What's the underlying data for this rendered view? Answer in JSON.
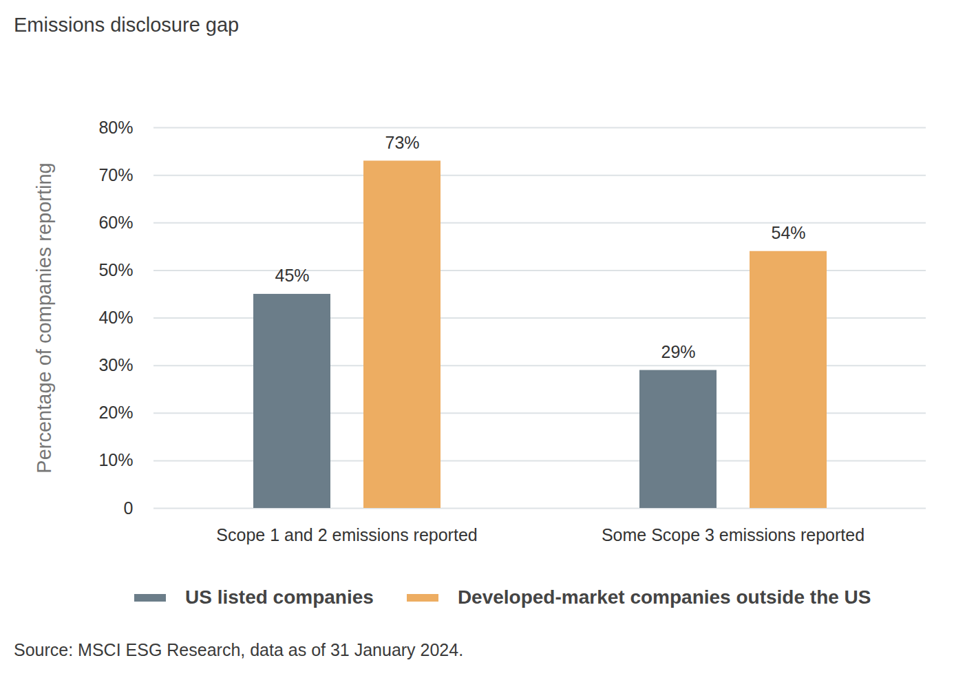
{
  "chart_data": {
    "type": "bar",
    "title": "Emissions disclosure gap",
    "y_label": "Percentage of companies reporting",
    "source": "Source: MSCI ESG Research, data as of 31 January 2024.",
    "categories": [
      "Scope 1 and 2 emissions reported",
      "Some Scope 3 emissions reported"
    ],
    "series": [
      {
        "name": "US listed companies",
        "color": "#6b7d89",
        "values": [
          45,
          29
        ],
        "value_labels": [
          "45%",
          "29%"
        ]
      },
      {
        "name": "Developed-market companies outside the US",
        "color": "#edad62",
        "values": [
          73,
          54
        ],
        "value_labels": [
          "73%",
          "54%"
        ]
      }
    ],
    "ylim": [
      0,
      80
    ],
    "yticks": [
      0,
      {
        "value": 10,
        "label": "10%"
      },
      {
        "value": 20,
        "label": "20%"
      },
      {
        "value": 30,
        "label": "30%"
      },
      {
        "value": 40,
        "label": "40%"
      },
      {
        "value": 50,
        "label": "50%"
      },
      {
        "value": 60,
        "label": "60%"
      },
      {
        "value": 70,
        "label": "70%"
      },
      {
        "value": 80,
        "label": "80%"
      }
    ],
    "grid": true,
    "data_labels": true,
    "legend": "bottom"
  }
}
